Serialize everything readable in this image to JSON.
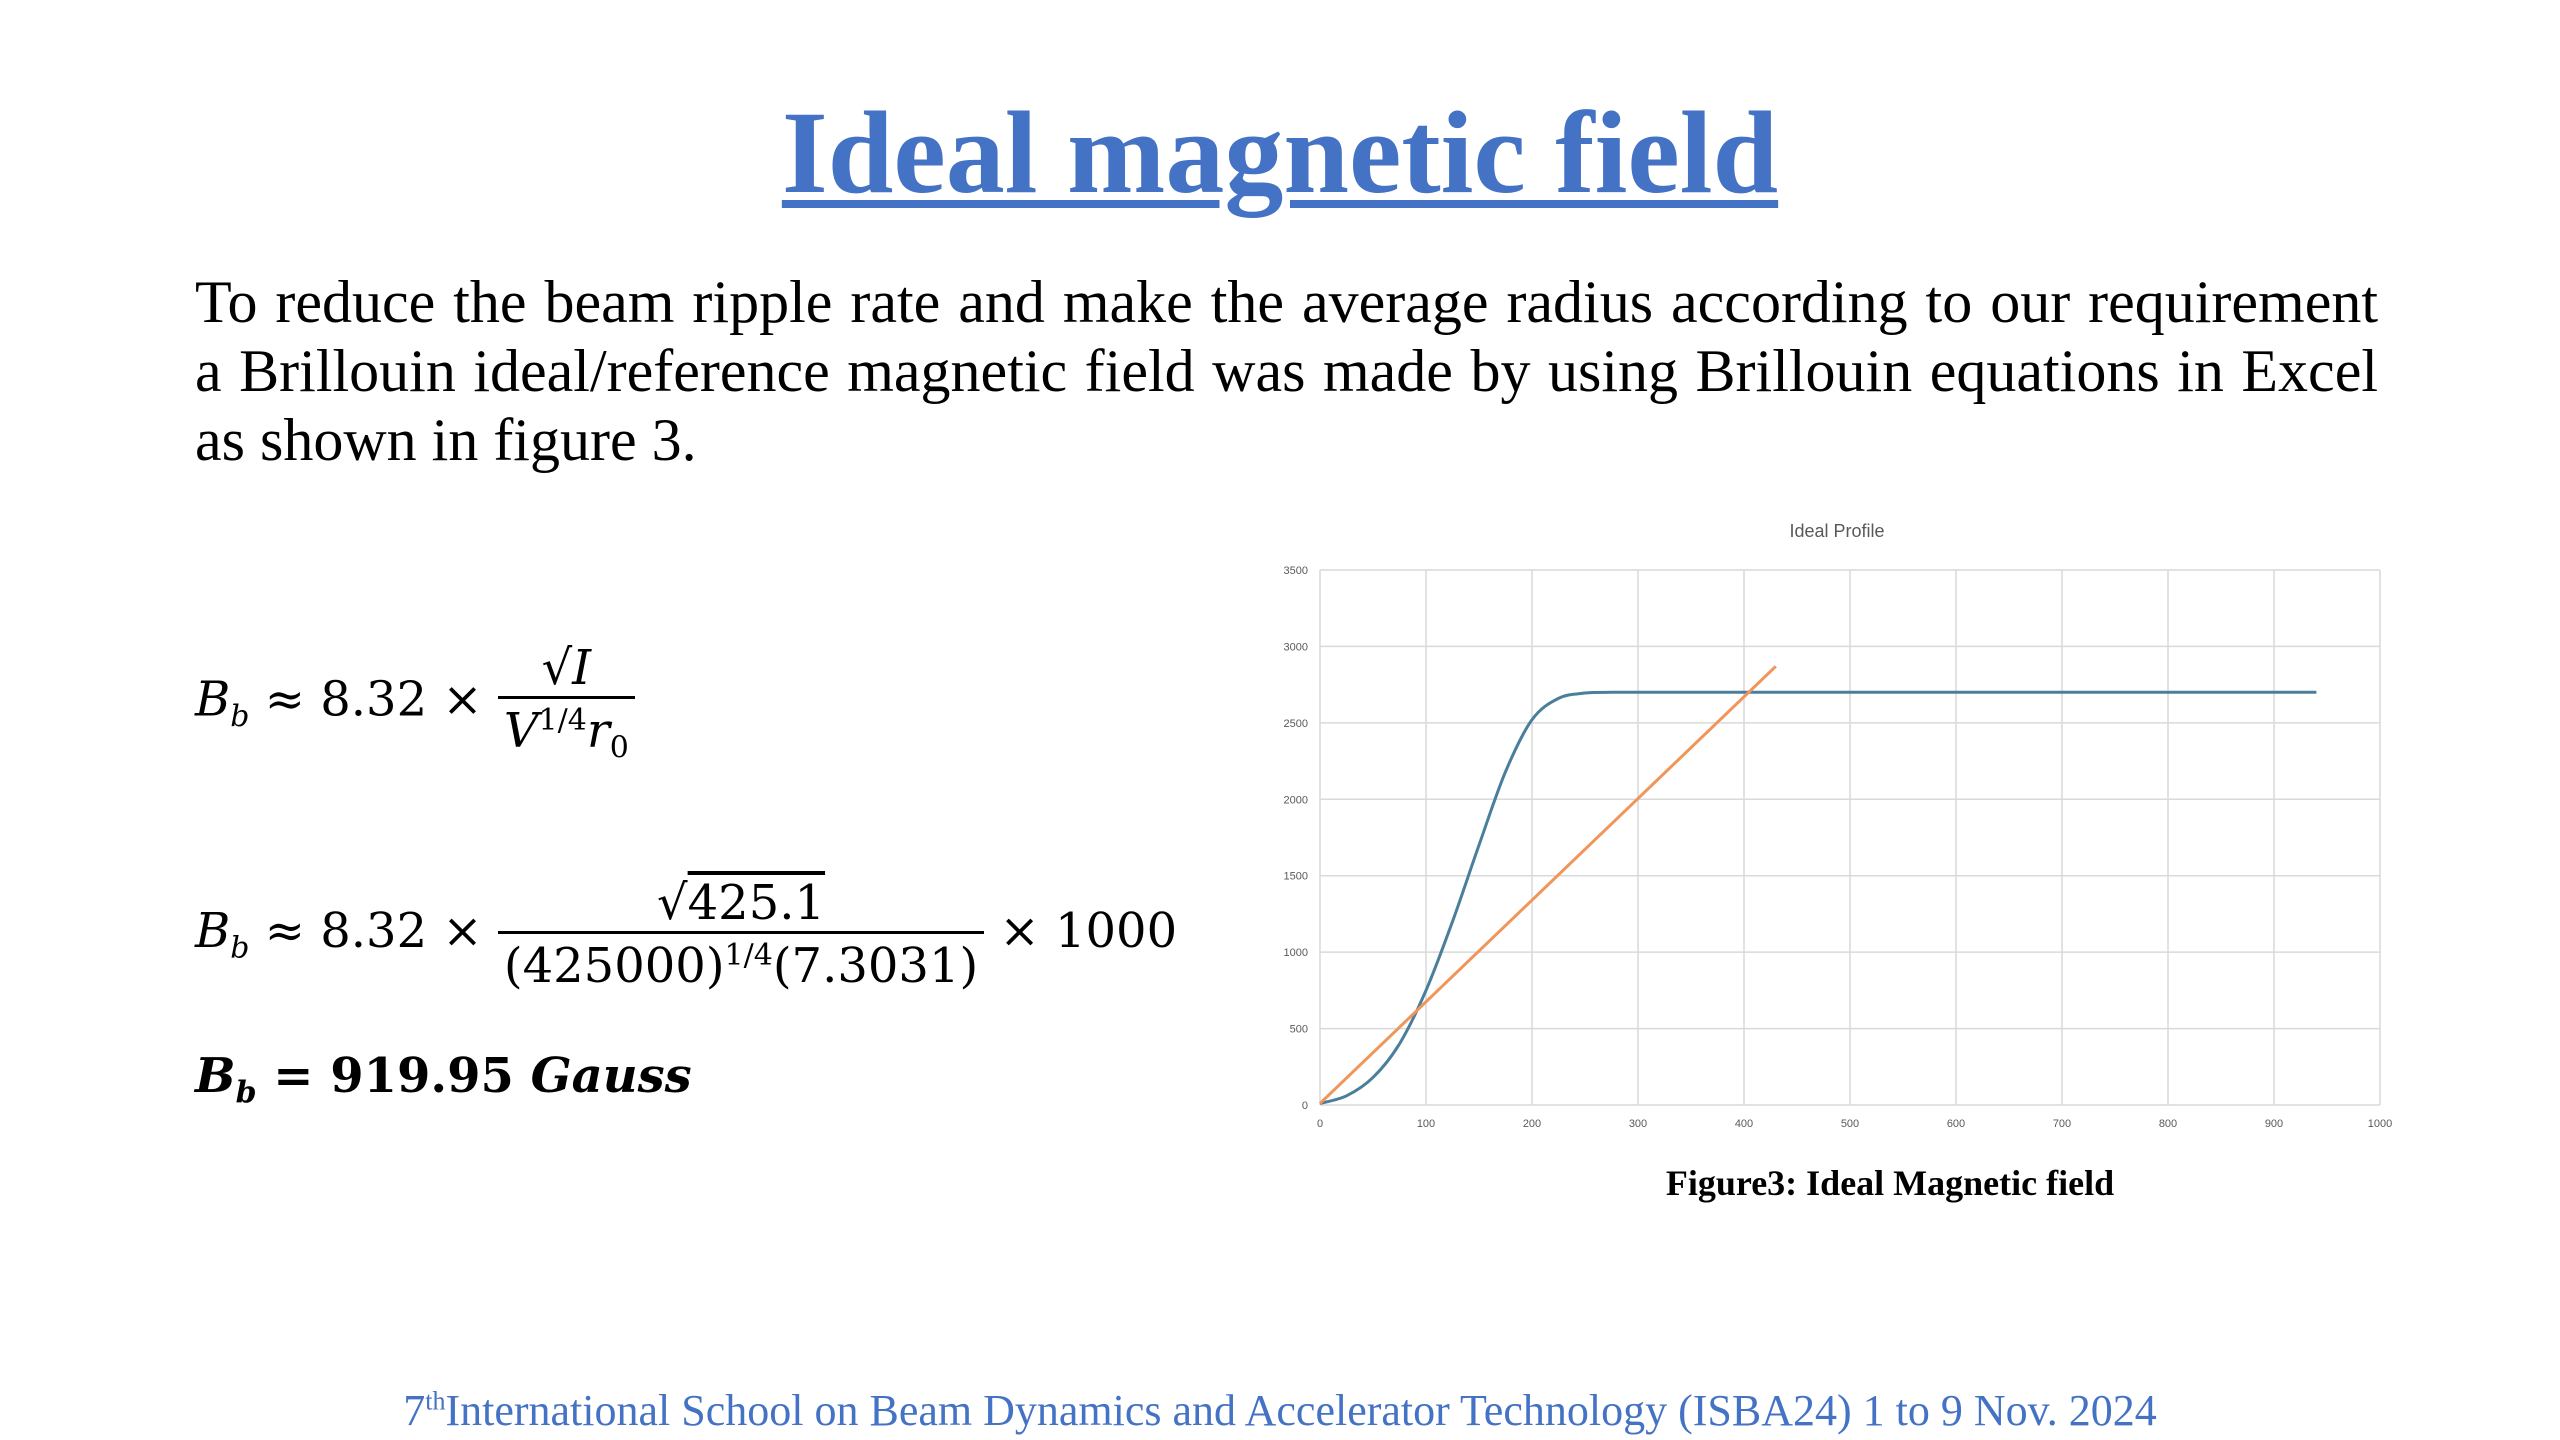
{
  "slide": {
    "title": "Ideal magnetic field",
    "paragraph": "To reduce the beam ripple rate and make the average radius according to our requirement a Brillouin ideal/reference magnetic field was made by using Brillouin equations in Excel as shown in figure 3.",
    "caption": "Figure3: Ideal Magnetic field",
    "footer_sup": "th",
    "footer_pre": "7",
    "footer_text": "International School on Beam Dynamics and Accelerator Technology (ISBA24) 1 to 9 Nov. 2024"
  },
  "equations": {
    "eq1": {
      "lhs_base": "B",
      "lhs_sub": "b",
      "approx": "≈ 8.32 ×",
      "num": "√I",
      "den_base": "V",
      "den_sup": "1/4",
      "den_r": "r",
      "den_r_sub": "0"
    },
    "eq2": {
      "lhs_base": "B",
      "lhs_sub": "b",
      "approx": "≈ 8.32 ×",
      "num_root": "√",
      "num_val": "425.1",
      "den_a": "(425000)",
      "den_sup": "1/4",
      "den_b": "(7.3031)",
      "tail": "× 1000"
    },
    "eq3": {
      "lhs_base": "B",
      "lhs_sub": "b",
      "rhs": "= 919.95",
      "unit": "Gauss"
    }
  },
  "chart_data": {
    "type": "line",
    "title": "Ideal Profile",
    "xlabel": "",
    "ylabel": "",
    "xlim": [
      0,
      1000
    ],
    "ylim": [
      0,
      3500
    ],
    "x_ticks": [
      0,
      100,
      200,
      300,
      400,
      500,
      600,
      700,
      800,
      900,
      1000
    ],
    "y_ticks": [
      0,
      500,
      1000,
      1500,
      2000,
      2500,
      3000,
      3500
    ],
    "grid": true,
    "legend": "none",
    "series": [
      {
        "color": "#4a7f9b",
        "x": [
          0,
          25,
          50,
          75,
          100,
          125,
          150,
          175,
          200,
          225,
          250,
          275,
          300,
          350,
          400,
          500,
          600,
          700,
          800,
          940
        ],
        "y": [
          10,
          60,
          180,
          400,
          750,
          1200,
          1700,
          2180,
          2520,
          2660,
          2695,
          2700,
          2700,
          2700,
          2700,
          2700,
          2700,
          2700,
          2700,
          2700
        ]
      },
      {
        "color": "#f0965a",
        "x": [
          0,
          430
        ],
        "y": [
          10,
          2870
        ]
      }
    ]
  }
}
